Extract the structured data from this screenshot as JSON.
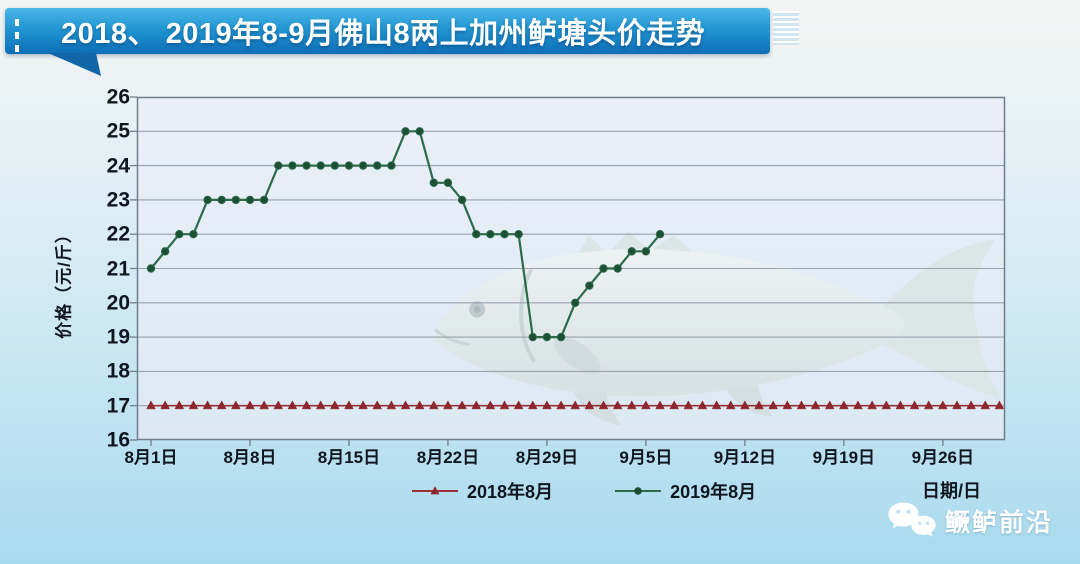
{
  "banner": {
    "title": "2018、 2019年8-9月佛山8两上加州鲈塘头价走势"
  },
  "chart_data": {
    "type": "line",
    "title": "2018、 2019年8-9月佛山8两上加州鲈塘头价走势",
    "ylabel": "价格（元/斤）",
    "xlabel": "日期/日",
    "ylim": [
      16,
      26
    ],
    "ytick_step": 1,
    "ytick_labels": [
      "26",
      "25",
      "24",
      "23",
      "22",
      "21",
      "20",
      "19",
      "18",
      "17",
      "16"
    ],
    "x_tick_labels": [
      "8月1日",
      "8月8日",
      "8月15日",
      "8月22日",
      "8月29日",
      "9月5日",
      "9月12日",
      "9月19日",
      "9月26日"
    ],
    "x_tick_day_indices": [
      0,
      7,
      14,
      21,
      28,
      35,
      42,
      49,
      56
    ],
    "grid": "horizontal-only",
    "legend_position": "bottom",
    "series": [
      {
        "name": "2018年8月",
        "marker": "triangle",
        "color": "#9c2f34",
        "marker_color": "#8d272e",
        "start_date": "8月1日",
        "values": [
          17,
          17,
          17,
          17,
          17,
          17,
          17,
          17,
          17,
          17,
          17,
          17,
          17,
          17,
          17,
          17,
          17,
          17,
          17,
          17,
          17,
          17,
          17,
          17,
          17,
          17,
          17,
          17,
          17,
          17,
          17,
          17,
          17,
          17,
          17,
          17,
          17,
          17,
          17,
          17,
          17,
          17,
          17,
          17,
          17,
          17,
          17,
          17,
          17,
          17,
          17,
          17,
          17,
          17,
          17,
          17,
          17,
          17,
          17,
          17,
          17
        ]
      },
      {
        "name": "2019年8月",
        "marker": "circle",
        "color": "#2c6a4a",
        "marker_color": "#1c4f33",
        "start_date": "8月1日",
        "values": [
          21,
          21.5,
          22,
          22,
          23,
          23,
          23,
          23,
          23,
          24,
          24,
          24,
          24,
          24,
          24,
          24,
          24,
          24,
          25,
          25,
          23.5,
          23.5,
          23,
          22,
          22,
          22,
          22,
          19,
          19,
          19,
          20,
          20.5,
          21,
          21,
          21.5,
          21.5,
          22
        ]
      }
    ]
  },
  "footer": {
    "wechat_label": "鳜鲈前沿",
    "wechat_icon": "wechat-logo-icon"
  },
  "watermark": {
    "icon": "fish-watermark"
  },
  "colors": {
    "banner_top": "#4cb6e9",
    "banner_bottom": "#0d6eb7",
    "banner_tail": "#1266a8",
    "grid_line": "#98a2ac",
    "frame": "#717d8b",
    "axis_text": "#10161f",
    "series_2018": "#9c2f34",
    "series_2019": "#2c6a4a"
  }
}
